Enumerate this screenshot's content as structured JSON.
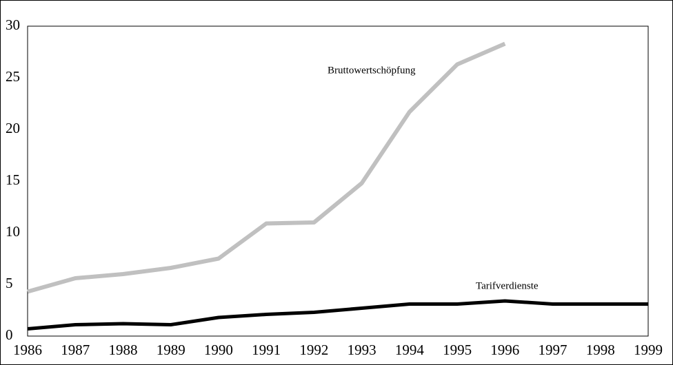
{
  "chart_data": {
    "type": "line",
    "x": [
      1986,
      1987,
      1988,
      1989,
      1990,
      1991,
      1992,
      1993,
      1994,
      1995,
      1996,
      1997,
      1998,
      1999
    ],
    "series": [
      {
        "name": "Bruttowertschöpfung",
        "color": "#c0c0c0",
        "values": [
          4.3,
          5.6,
          6.0,
          6.6,
          7.5,
          10.9,
          11.0,
          14.8,
          21.7,
          26.3,
          28.3,
          null,
          null,
          null
        ]
      },
      {
        "name": "Tarifverdienste",
        "color": "#000000",
        "values": [
          0.7,
          1.1,
          1.2,
          1.1,
          1.8,
          2.1,
          2.3,
          2.7,
          3.1,
          3.1,
          3.4,
          3.1,
          3.1,
          3.1
        ]
      }
    ],
    "xlim": [
      1986,
      1999
    ],
    "xticks": [
      1986,
      1987,
      1988,
      1989,
      1990,
      1991,
      1992,
      1993,
      1994,
      1995,
      1996,
      1997,
      1998,
      1999
    ],
    "ylim": [
      0,
      30
    ],
    "yticks": [
      0,
      5,
      10,
      15,
      20,
      25,
      30
    ],
    "grid": false
  }
}
